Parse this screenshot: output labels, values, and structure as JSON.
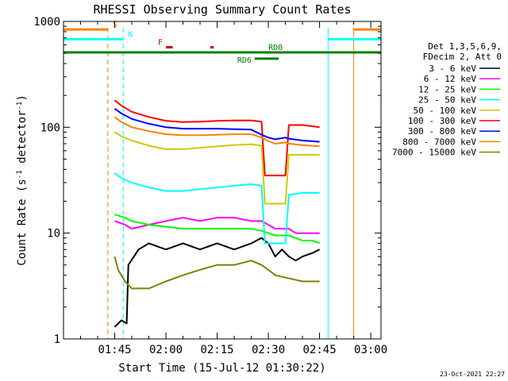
{
  "chart_data": {
    "type": "line",
    "title": "RHESSI Observing Summary Count Rates",
    "xlabel": "Start Time (15-Jul-12 01:30:22)",
    "ylabel": "Count Rate (s-1 detector-1)",
    "yscale": "log",
    "ylim": [
      1,
      1000
    ],
    "xlim_minutes": [
      0,
      93
    ],
    "x_ticks": [
      {
        "m": 15,
        "label": "01:45"
      },
      {
        "m": 30,
        "label": "02:00"
      },
      {
        "m": 45,
        "label": "02:15"
      },
      {
        "m": 60,
        "label": "02:30"
      },
      {
        "m": 75,
        "label": "02:45"
      },
      {
        "m": 90,
        "label": "03:00"
      }
    ],
    "y_ticks": [
      {
        "v": 1,
        "label": "1"
      },
      {
        "v": 10,
        "label": "10"
      },
      {
        "v": 100,
        "label": "100"
      },
      {
        "v": 1000,
        "label": "1000"
      }
    ],
    "legend_header": [
      "Det 1,3,5,6,9,",
      "FDecim 2, Att 0"
    ],
    "series": [
      {
        "name": "3 - 6 keV",
        "color": "#000000",
        "points": [
          [
            15,
            1.3
          ],
          [
            17,
            1.5
          ],
          [
            18.5,
            1.4
          ],
          [
            19,
            5
          ],
          [
            22,
            7
          ],
          [
            25,
            8
          ],
          [
            30,
            7
          ],
          [
            35,
            8
          ],
          [
            40,
            7
          ],
          [
            45,
            8
          ],
          [
            50,
            7
          ],
          [
            55,
            8
          ],
          [
            58,
            9
          ],
          [
            60,
            8
          ],
          [
            62,
            6
          ],
          [
            64,
            7
          ],
          [
            66,
            6
          ],
          [
            68,
            5.5
          ],
          [
            70,
            6
          ],
          [
            73,
            6.5
          ],
          [
            75,
            7
          ]
        ]
      },
      {
        "name": "6 - 12 keV",
        "color": "#ff00ff",
        "points": [
          [
            15,
            13
          ],
          [
            18,
            12
          ],
          [
            20,
            11
          ],
          [
            25,
            12
          ],
          [
            30,
            13
          ],
          [
            35,
            14
          ],
          [
            40,
            13
          ],
          [
            45,
            14
          ],
          [
            50,
            14
          ],
          [
            55,
            13
          ],
          [
            58,
            13
          ],
          [
            60,
            12
          ],
          [
            62,
            11
          ],
          [
            64,
            11
          ],
          [
            66,
            11
          ],
          [
            68,
            10
          ],
          [
            70,
            10
          ],
          [
            73,
            10
          ],
          [
            75,
            10
          ]
        ]
      },
      {
        "name": "12 - 25 keV",
        "color": "#00ff00",
        "points": [
          [
            15,
            15
          ],
          [
            18,
            14
          ],
          [
            20,
            13
          ],
          [
            25,
            12
          ],
          [
            30,
            11.5
          ],
          [
            35,
            11
          ],
          [
            40,
            11
          ],
          [
            45,
            11
          ],
          [
            50,
            11
          ],
          [
            55,
            11
          ],
          [
            58,
            10.5
          ],
          [
            60,
            10
          ],
          [
            62,
            9.5
          ],
          [
            64,
            9.5
          ],
          [
            66,
            9.5
          ],
          [
            68,
            9
          ],
          [
            70,
            8.5
          ],
          [
            73,
            8.5
          ],
          [
            75,
            8
          ]
        ]
      },
      {
        "name": "25 - 50 keV",
        "color": "#00ffff",
        "points": [
          [
            15,
            37
          ],
          [
            17,
            33
          ],
          [
            20,
            30
          ],
          [
            25,
            27
          ],
          [
            30,
            25
          ],
          [
            35,
            25
          ],
          [
            40,
            26
          ],
          [
            45,
            27
          ],
          [
            50,
            28
          ],
          [
            55,
            29
          ],
          [
            58,
            28
          ],
          [
            59,
            8
          ],
          [
            65,
            8
          ],
          [
            66,
            23
          ],
          [
            70,
            24
          ],
          [
            75,
            24
          ]
        ]
      },
      {
        "name": "50 - 100 keV",
        "color": "#cccc00",
        "points": [
          [
            15,
            90
          ],
          [
            17,
            82
          ],
          [
            20,
            75
          ],
          [
            25,
            67
          ],
          [
            30,
            62
          ],
          [
            35,
            62
          ],
          [
            40,
            64
          ],
          [
            45,
            66
          ],
          [
            50,
            68
          ],
          [
            55,
            69
          ],
          [
            58,
            67
          ],
          [
            59,
            19
          ],
          [
            65,
            19
          ],
          [
            66,
            55
          ],
          [
            70,
            55
          ],
          [
            75,
            55
          ]
        ]
      },
      {
        "name": "100 - 300 keV",
        "color": "#ff0000",
        "points": [
          [
            15,
            180
          ],
          [
            17,
            160
          ],
          [
            20,
            140
          ],
          [
            25,
            125
          ],
          [
            30,
            115
          ],
          [
            35,
            112
          ],
          [
            40,
            113
          ],
          [
            45,
            115
          ],
          [
            50,
            116
          ],
          [
            55,
            116
          ],
          [
            58,
            113
          ],
          [
            59,
            35
          ],
          [
            65,
            35
          ],
          [
            66,
            105
          ],
          [
            70,
            105
          ],
          [
            75,
            100
          ]
        ]
      },
      {
        "name": "300 - 800 keV",
        "color": "#0000ff",
        "points": [
          [
            15,
            150
          ],
          [
            17,
            135
          ],
          [
            20,
            120
          ],
          [
            25,
            108
          ],
          [
            30,
            100
          ],
          [
            35,
            97
          ],
          [
            40,
            97
          ],
          [
            45,
            97
          ],
          [
            50,
            96
          ],
          [
            55,
            95
          ],
          [
            58,
            85
          ],
          [
            60,
            80
          ],
          [
            62,
            77
          ],
          [
            65,
            80
          ],
          [
            66,
            78
          ],
          [
            70,
            75
          ],
          [
            75,
            73
          ]
        ]
      },
      {
        "name": "800 - 7000 keV",
        "color": "#ff8000",
        "points": [
          [
            15,
            125
          ],
          [
            17,
            112
          ],
          [
            20,
            100
          ],
          [
            25,
            92
          ],
          [
            30,
            86
          ],
          [
            35,
            84
          ],
          [
            40,
            84
          ],
          [
            45,
            85
          ],
          [
            50,
            86
          ],
          [
            55,
            86
          ],
          [
            58,
            80
          ],
          [
            60,
            74
          ],
          [
            62,
            70
          ],
          [
            65,
            72
          ],
          [
            66,
            70
          ],
          [
            70,
            68
          ],
          [
            75,
            66
          ]
        ]
      },
      {
        "name": "7000 - 15000 keV",
        "color": "#808000",
        "points": [
          [
            15,
            6
          ],
          [
            16,
            4.5
          ],
          [
            18,
            3.5
          ],
          [
            20,
            3
          ],
          [
            25,
            3
          ],
          [
            30,
            3.5
          ],
          [
            35,
            4
          ],
          [
            40,
            4.5
          ],
          [
            45,
            5
          ],
          [
            50,
            5
          ],
          [
            55,
            5.5
          ],
          [
            58,
            5
          ],
          [
            60,
            4.5
          ],
          [
            62,
            4
          ],
          [
            65,
            3.8
          ],
          [
            70,
            3.5
          ],
          [
            75,
            3.5
          ]
        ]
      }
    ],
    "flag_lines": [
      {
        "label": "S",
        "color": "#ff8000",
        "level": 840,
        "segments": [
          [
            0,
            13
          ],
          [
            85,
            93
          ]
        ],
        "vlines": [
          13,
          85,
          93
        ]
      },
      {
        "label": "N",
        "color": "#00ffff",
        "level": 680,
        "segments": [
          [
            0,
            17.5
          ],
          [
            77.5,
            93
          ]
        ],
        "vlines": [
          17.5,
          77.5,
          93
        ]
      },
      {
        "label": "F",
        "color": "#cc0000",
        "level": 570,
        "segments": [
          [
            30,
            32
          ],
          [
            43,
            44
          ]
        ],
        "vlines": []
      },
      {
        "label": "RD0",
        "color": "#007f00",
        "level": 510,
        "segments": [
          [
            0,
            93
          ]
        ],
        "vlines": []
      },
      {
        "label": "RD6",
        "color": "#007f00",
        "level": 445,
        "segments": [
          [
            56,
            63
          ]
        ],
        "vlines": []
      }
    ]
  },
  "timestamp": "23-Oct-2021 22:27"
}
